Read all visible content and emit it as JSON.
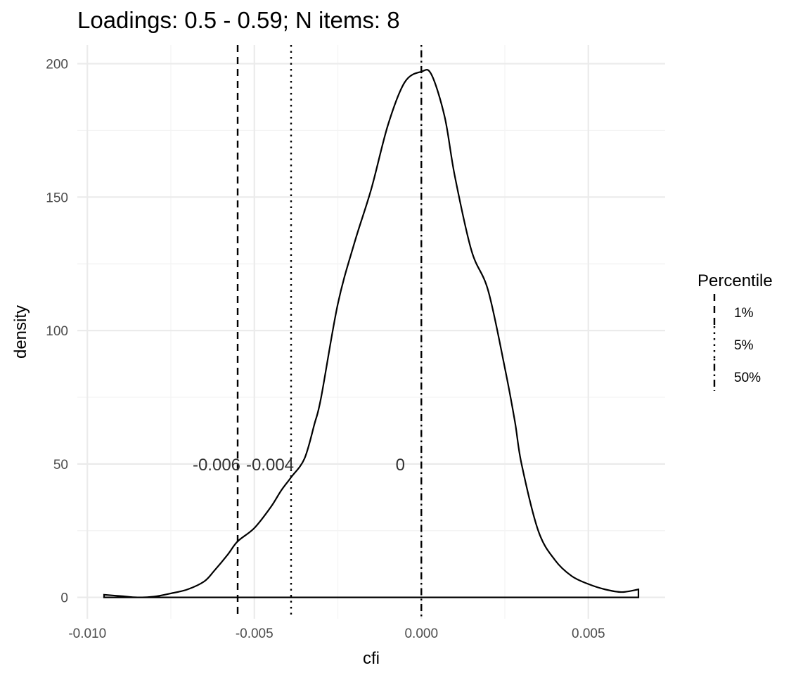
{
  "chart_data": {
    "type": "area",
    "title": "Loadings: 0.5 - 0.59; N items: 8",
    "xlabel": "cfi",
    "ylabel": "density",
    "xlim": [
      -0.0103,
      0.0073
    ],
    "ylim": [
      -8,
      207
    ],
    "x_ticks": [
      -0.01,
      -0.005,
      0.0,
      0.005
    ],
    "x_tick_labels": [
      "-0.010",
      "-0.005",
      "0.000",
      "0.005"
    ],
    "y_ticks": [
      0,
      50,
      100,
      150,
      200
    ],
    "y_tick_labels": [
      "0",
      "50",
      "100",
      "150",
      "200"
    ],
    "grid": true,
    "series": [
      {
        "x": [
          -0.0095,
          -0.009,
          -0.0085,
          -0.008,
          -0.0075,
          -0.007,
          -0.0065,
          -0.0062,
          -0.0058,
          -0.0055,
          -0.005,
          -0.0045,
          -0.0042,
          -0.0039,
          -0.0035,
          -0.0032,
          -0.003,
          -0.0025,
          -0.002,
          -0.0015,
          -0.001,
          -0.0005,
          0.0,
          0.0003,
          0.0007,
          0.001,
          0.0015,
          0.002,
          0.0025,
          0.0028,
          0.003,
          0.0035,
          0.004,
          0.0045,
          0.005,
          0.0055,
          0.006,
          0.0065
        ],
        "values": [
          1,
          0.5,
          0,
          0.3,
          1.5,
          3,
          6,
          10,
          16,
          21,
          26,
          34,
          40,
          45,
          52,
          65,
          75,
          110,
          133,
          153,
          177,
          193,
          197,
          196,
          180,
          158,
          130,
          115,
          86,
          66,
          50,
          25,
          14,
          8,
          5,
          3,
          2,
          3
        ]
      }
    ],
    "vlines": [
      {
        "name": "1%",
        "x": -0.0055,
        "style": "dashed",
        "label": "-0.006"
      },
      {
        "name": "5%",
        "x": -0.0039,
        "style": "dotted",
        "label": "-0.004"
      },
      {
        "name": "50%",
        "x": 0.0,
        "style": "dotdash",
        "label": "0"
      }
    ],
    "annotation_y": 50,
    "legend": {
      "title": "Percentile",
      "placement": "right",
      "entries": [
        "1%",
        "5%",
        "50%"
      ]
    }
  }
}
